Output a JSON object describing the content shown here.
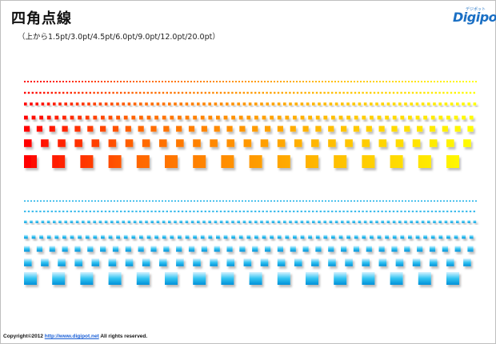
{
  "header": {
    "title": "四角点線",
    "subtitle": "（上から1.5pt/3.0pt/4.5pt/6.0pt/9.0pt/12.0pt/20.0pt）"
  },
  "logo": {
    "text": "Digipot",
    "small_text": "デジポット"
  },
  "warm_lines": {
    "colors": [
      "#ff0000",
      "#ff6600",
      "#ff9900",
      "#ffcc00",
      "#ffff00"
    ],
    "weights_pt": [
      1.5,
      3.0,
      4.5,
      6.0,
      9.0,
      12.0,
      20.0
    ]
  },
  "cool_lines": {
    "colors": [
      "#00a8e8",
      "#33c4f2"
    ],
    "weights_pt": [
      1.5,
      3.0,
      4.5,
      6.0,
      9.0,
      12.0,
      20.0
    ]
  },
  "footer": {
    "prefix": "Copyright©2012 ",
    "link": "http://www.digipot.net",
    "suffix": " All rights reserved."
  }
}
